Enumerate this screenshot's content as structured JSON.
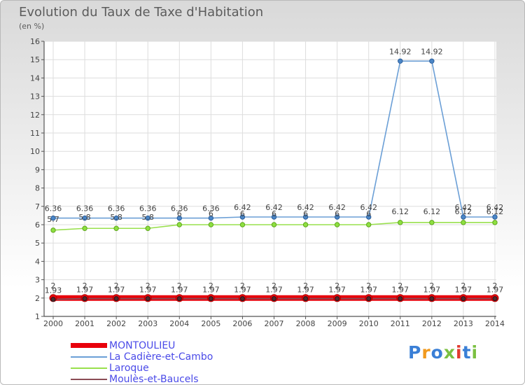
{
  "chart_data": {
    "type": "line",
    "title": "Evolution du Taux de Taxe d'Habitation",
    "subtitle": "(en %)",
    "xlabel": "",
    "ylabel": "(en %)",
    "x": [
      "2000",
      "2001",
      "2002",
      "2003",
      "2004",
      "2005",
      "2006",
      "2007",
      "2008",
      "2009",
      "2010",
      "2011",
      "2012",
      "2013",
      "2014"
    ],
    "ylim": [
      1,
      16
    ],
    "yticks": [
      "1",
      "2",
      "3",
      "4",
      "5",
      "6",
      "7",
      "8",
      "9",
      "10",
      "11",
      "12",
      "13",
      "14",
      "15",
      "16"
    ],
    "grid": true,
    "legend_position": "bottom-left",
    "series": [
      {
        "name": "MONTOULIEU",
        "color": "#e8000b",
        "values": [
          2,
          2,
          2,
          2,
          2,
          2,
          2,
          2,
          2,
          2,
          2,
          2,
          2,
          2,
          2
        ],
        "labels": [
          "2",
          "2",
          "2",
          "2",
          "2",
          "2",
          "2",
          "2",
          "2",
          "2",
          "2",
          "2",
          "2",
          "2",
          "2"
        ]
      },
      {
        "name": "La Cadière-et-Cambo",
        "color": "#6b9fd6",
        "values": [
          6.36,
          6.36,
          6.36,
          6.36,
          6.36,
          6.36,
          6.42,
          6.42,
          6.42,
          6.42,
          6.42,
          14.92,
          14.92,
          6.42,
          6.42
        ],
        "labels": [
          "6.36",
          "6.36",
          "6.36",
          "6.36",
          "6.36",
          "6.36",
          "6.42",
          "6.42",
          "6.42",
          "6.42",
          "6.42",
          "14.92",
          "14.92",
          "6.42",
          "6.42"
        ]
      },
      {
        "name": "Laroque",
        "color": "#99e04d",
        "values": [
          5.7,
          5.8,
          5.8,
          5.8,
          6,
          6,
          6,
          6,
          6,
          6,
          6,
          6.12,
          6.12,
          6.12,
          6.12
        ],
        "labels": [
          "5.7",
          "5.8",
          "5.8",
          "5.8",
          "6",
          "6",
          "6",
          "6",
          "6",
          "6",
          "6",
          "6.12",
          "6.12",
          "6.12",
          "6.12"
        ]
      },
      {
        "name": "Moulès-et-Baucels",
        "color": "#8b4c55",
        "values": [
          1.93,
          1.97,
          1.97,
          1.97,
          1.97,
          1.97,
          1.97,
          1.97,
          1.97,
          1.97,
          1.97,
          1.97,
          1.97,
          1.97,
          1.97
        ],
        "labels": [
          "1.93",
          "1.97",
          "1.97",
          "1.97",
          "1.97",
          "1.97",
          "1.97",
          "1.97",
          "1.97",
          "1.97",
          "1.97",
          "1.97",
          "1.97",
          "1.97",
          "1.97"
        ]
      }
    ]
  },
  "logo": {
    "text": "Proxiti"
  }
}
